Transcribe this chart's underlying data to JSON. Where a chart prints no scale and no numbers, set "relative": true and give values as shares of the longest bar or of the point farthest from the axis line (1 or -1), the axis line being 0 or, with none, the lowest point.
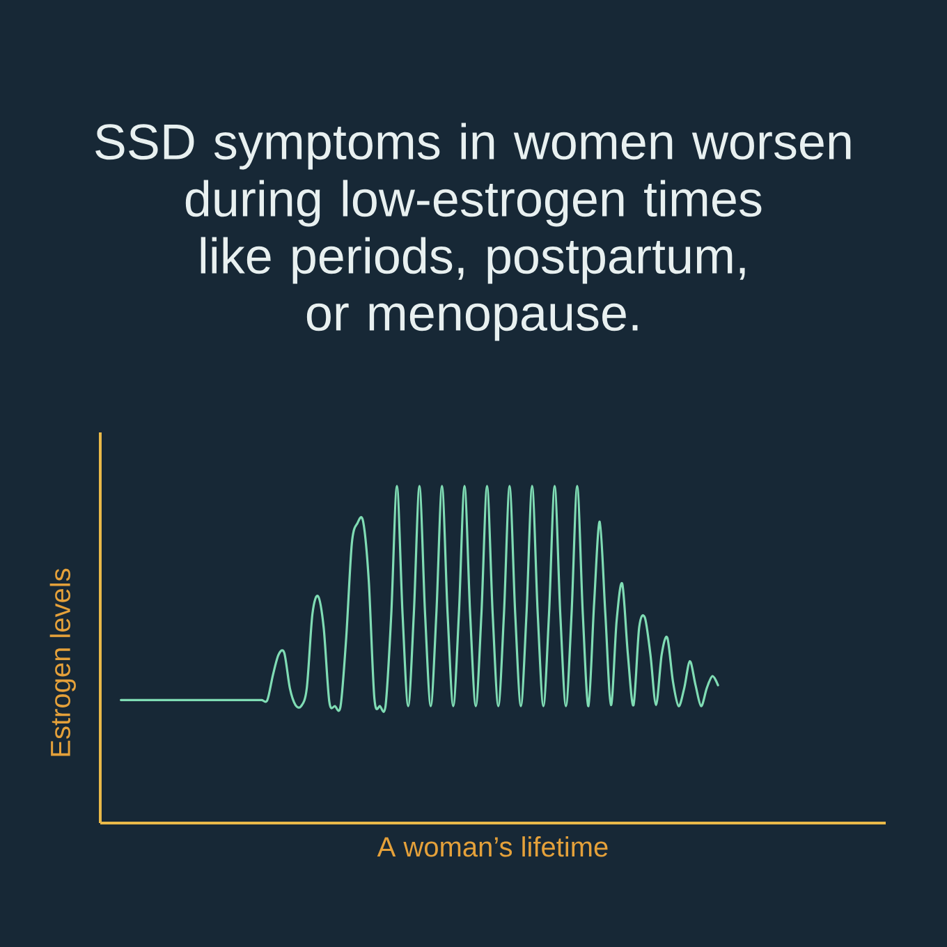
{
  "chart_data": {
    "type": "line",
    "title": "SSD symptoms in women worsen during low-estrogen times like periods, postpartum, or menopause.",
    "xlabel": "A woman’s lifetime",
    "ylabel": "Estrogen levels",
    "relative": true,
    "categories": [
      null,
      null,
      null,
      null,
      null,
      null,
      null,
      null,
      null,
      null,
      null,
      null,
      null,
      null,
      null,
      null,
      null,
      null,
      null,
      null,
      null,
      null,
      null,
      null,
      null,
      null,
      null,
      null,
      null,
      null,
      null,
      null,
      null,
      null,
      null,
      null,
      null,
      null,
      null,
      null,
      null,
      null,
      null,
      null,
      null,
      null,
      null,
      null,
      null,
      null,
      null,
      null,
      null,
      null,
      null,
      null,
      null,
      null,
      null,
      null,
      null,
      null,
      null,
      null,
      null,
      null,
      null,
      null,
      null,
      null,
      null,
      null,
      null,
      null,
      null,
      null,
      null,
      null,
      null,
      null,
      null,
      null,
      null,
      null,
      null,
      null,
      null,
      null,
      null,
      null,
      null,
      null,
      null,
      null,
      null,
      null,
      null,
      null,
      null,
      null,
      null,
      null,
      null,
      null,
      null,
      null,
      null
    ],
    "series": [
      {
        "color": "#7fdcb4",
        "values": [
          0.365,
          0.365,
          0.365,
          0.365,
          0.365,
          0.365,
          0.365,
          0.365,
          0.365,
          0.365,
          0.365,
          0.365,
          0.365,
          0.365,
          0.365,
          0.365,
          0.365,
          0.365,
          0.365,
          0.365,
          0.365,
          0.365,
          0.365,
          0.365,
          0.365,
          0.365,
          0.365,
          0.44,
          0.5,
          0.505,
          0.4,
          0.35,
          0.347,
          0.4,
          0.62,
          0.673,
          0.58,
          0.36,
          0.347,
          0.347,
          0.55,
          0.83,
          0.89,
          0.895,
          0.72,
          0.37,
          0.347,
          0.35,
          0.62,
          1,
          0.62,
          0.347,
          0.62,
          1,
          0.62,
          0.347,
          0.62,
          1,
          0.62,
          0.347,
          0.62,
          1,
          0.62,
          0.347,
          0.62,
          1,
          0.62,
          0.347,
          0.62,
          1,
          0.62,
          0.347,
          0.62,
          1,
          0.62,
          0.347,
          0.62,
          1,
          0.62,
          0.347,
          0.62,
          1,
          0.62,
          0.347,
          0.65,
          0.894,
          0.62,
          0.35,
          0.6,
          0.71,
          0.5,
          0.35,
          0.58,
          0.61,
          0.5,
          0.35,
          0.5,
          0.55,
          0.42,
          0.347,
          0.4,
          0.48,
          0.41,
          0.347,
          0.4,
          0.436,
          0.409
        ]
      }
    ]
  }
}
